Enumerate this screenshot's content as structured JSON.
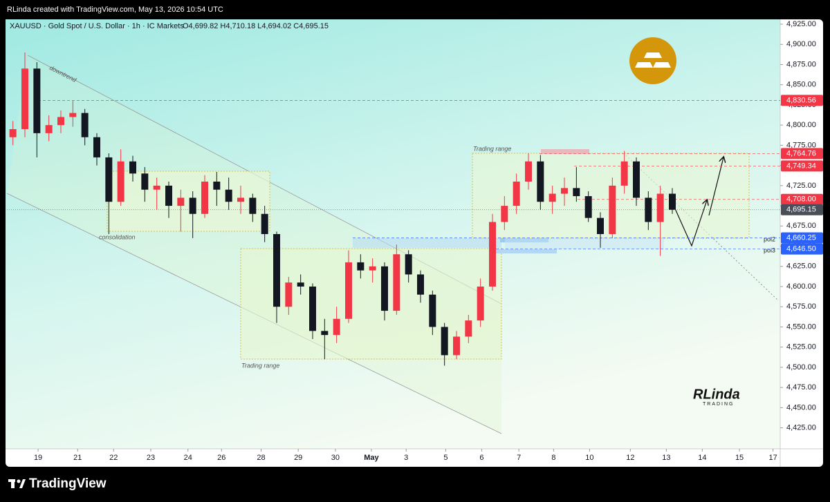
{
  "header": {
    "credit": "RLinda created with TradingView.com, May 13, 2026 10:54 UTC",
    "symbol": "XAUUSD · Gold Spot / U.S. Dollar · 1h · IC Markets",
    "ohlc": "O4,699.82 H4,710.18 L4,694.02 C4,695.15"
  },
  "chart_data": {
    "type": "candlestick",
    "up_color": "#f23645",
    "down_color": "#131722",
    "open": [
      4785,
      4795,
      4870,
      4790,
      4800,
      4810,
      4815,
      4785,
      4760,
      4705,
      4755,
      4740,
      4720,
      4725,
      4700,
      4710,
      4690,
      4730,
      4720,
      4705,
      4710,
      4690,
      4665,
      4575,
      4605,
      4600,
      4545,
      4540,
      4560,
      4630,
      4620,
      4625,
      4570,
      4640,
      4615,
      4590,
      4550,
      4515,
      4538,
      4558,
      4600,
      4680,
      4700,
      4730,
      4755,
      4705,
      4715,
      4722,
      4712,
      4685,
      4665,
      4725,
      4755,
      4710,
      4680,
      4715
    ],
    "high": [
      4805,
      4890,
      4878,
      4812,
      4818,
      4830,
      4820,
      4790,
      4765,
      4770,
      4762,
      4748,
      4735,
      4730,
      4720,
      4718,
      4738,
      4742,
      4735,
      4725,
      4715,
      4700,
      4668,
      4612,
      4615,
      4604,
      4560,
      4575,
      4645,
      4640,
      4635,
      4630,
      4652,
      4645,
      4620,
      4595,
      4555,
      4545,
      4565,
      4610,
      4690,
      4712,
      4740,
      4765,
      4763,
      4725,
      4735,
      4748,
      4718,
      4692,
      4735,
      4768,
      4760,
      4718,
      4725,
      4722
    ],
    "low": [
      4775,
      4785,
      4760,
      4780,
      4790,
      4798,
      4775,
      4750,
      4665,
      4700,
      4730,
      4705,
      4695,
      4685,
      4668,
      4660,
      4685,
      4700,
      4695,
      4690,
      4680,
      4655,
      4555,
      4565,
      4590,
      4535,
      4510,
      4530,
      4555,
      4610,
      4605,
      4558,
      4565,
      4605,
      4580,
      4540,
      4502,
      4510,
      4530,
      4550,
      4595,
      4670,
      4690,
      4720,
      4695,
      4690,
      4700,
      4705,
      4680,
      4648,
      4660,
      4715,
      4700,
      4670,
      4638,
      4690
    ],
    "close": [
      4795,
      4870,
      4790,
      4800,
      4810,
      4815,
      4785,
      4760,
      4705,
      4755,
      4740,
      4720,
      4725,
      4700,
      4710,
      4690,
      4730,
      4720,
      4705,
      4710,
      4690,
      4665,
      4575,
      4605,
      4600,
      4545,
      4540,
      4560,
      4630,
      4620,
      4625,
      4570,
      4640,
      4615,
      4590,
      4550,
      4515,
      4538,
      4558,
      4600,
      4680,
      4700,
      4730,
      4755,
      4705,
      4715,
      4722,
      4712,
      4685,
      4665,
      4725,
      4755,
      4710,
      4680,
      4715,
      4695.15
    ],
    "xlim": [
      0,
      64.5
    ],
    "xticks": [
      {
        "value": 2.6,
        "label": "19"
      },
      {
        "value": 5.9,
        "label": "21"
      },
      {
        "value": 8.9,
        "label": "22"
      },
      {
        "value": 12,
        "label": "23"
      },
      {
        "value": 15.1,
        "label": "24"
      },
      {
        "value": 17.9,
        "label": "26"
      },
      {
        "value": 21.2,
        "label": "28"
      },
      {
        "value": 24.3,
        "label": "29"
      },
      {
        "value": 27.4,
        "label": "30"
      },
      {
        "value": 30.4,
        "label": "May"
      },
      {
        "value": 33.3,
        "label": "3"
      },
      {
        "value": 36.6,
        "label": "5"
      },
      {
        "value": 39.6,
        "label": "6"
      },
      {
        "value": 42.7,
        "label": "7"
      },
      {
        "value": 45.6,
        "label": "8"
      },
      {
        "value": 48.6,
        "label": "10"
      },
      {
        "value": 52,
        "label": "12"
      },
      {
        "value": 55,
        "label": "13"
      },
      {
        "value": 58,
        "label": "14"
      },
      {
        "value": 61.1,
        "label": "15"
      },
      {
        "value": 63.9,
        "label": "17"
      }
    ],
    "ylim": [
      4399,
      4931
    ],
    "yticks": [
      {
        "value": 4425,
        "label": "4,425.00"
      },
      {
        "value": 4450,
        "label": "4,450.00"
      },
      {
        "value": 4475,
        "label": "4,475.00"
      },
      {
        "value": 4500,
        "label": "4,500.00"
      },
      {
        "value": 4525,
        "label": "4,525.00"
      },
      {
        "value": 4550,
        "label": "4,550.00"
      },
      {
        "value": 4575,
        "label": "4,575.00"
      },
      {
        "value": 4600,
        "label": "4,600.00"
      },
      {
        "value": 4625,
        "label": "4,625.00"
      },
      {
        "value": 4650,
        "label": "4,650.00"
      },
      {
        "value": 4675,
        "label": "4,675.00"
      },
      {
        "value": 4700,
        "label": "4,700.00"
      },
      {
        "value": 4725,
        "label": "4,725.00"
      },
      {
        "value": 4750,
        "label": "4,750.00"
      },
      {
        "value": 4775,
        "label": "4,775.00"
      },
      {
        "value": 4800,
        "label": "4,800.00"
      },
      {
        "value": 4825,
        "label": "4,825.00"
      },
      {
        "value": 4850,
        "label": "4,850.00"
      },
      {
        "value": 4875,
        "label": "4,875.00"
      },
      {
        "value": 4900,
        "label": "4,900.00"
      },
      {
        "value": 4925,
        "label": "4,925.00"
      }
    ],
    "levels": [
      {
        "value": 4830.56,
        "label": "4,830.56",
        "color": "#f23645"
      },
      {
        "value": 4764.76,
        "label": "4,764.76",
        "color": "#f23645"
      },
      {
        "value": 4749.34,
        "label": "4,749.34",
        "color": "#f23645"
      },
      {
        "value": 4708.0,
        "label": "4,708.00",
        "color": "#f23645"
      },
      {
        "value": 4695.15,
        "label": "4,695.15",
        "color": "#4a4e59"
      },
      {
        "value": 4660.25,
        "label": "4,660.25",
        "color": "#2962ff"
      },
      {
        "value": 4646.5,
        "label": "4,646.50",
        "color": "#2962ff"
      }
    ],
    "annotations": {
      "downtrend": "downtrend",
      "consolidation": "consolidation",
      "range1": "Trading range",
      "range2": "Trading range",
      "poi2": "poi2",
      "poi3": "poi3"
    }
  },
  "watermark": {
    "name": "RLinda",
    "sub": "TRADING"
  },
  "footer": {
    "brand": "TradingView"
  }
}
